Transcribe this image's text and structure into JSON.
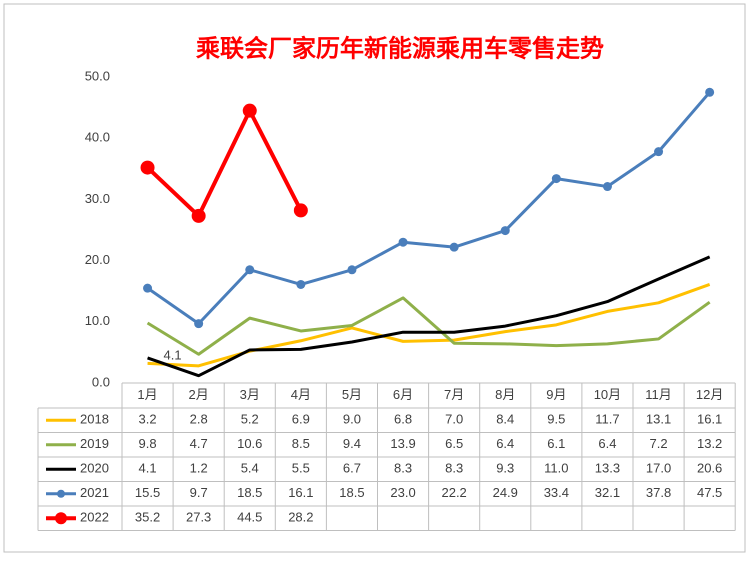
{
  "chart_data": {
    "type": "line",
    "title": "乘联会厂家历年新能源乘用车零售走势",
    "categories": [
      "1月",
      "2月",
      "3月",
      "4月",
      "5月",
      "6月",
      "7月",
      "8月",
      "9月",
      "10月",
      "11月",
      "12月"
    ],
    "ylim": [
      0,
      50
    ],
    "yticks": [
      {
        "value": 0,
        "label": "0.0"
      },
      {
        "value": 10,
        "label": "10.0"
      },
      {
        "value": 20,
        "label": "20.0"
      },
      {
        "value": 30,
        "label": "30.0"
      },
      {
        "value": 40,
        "label": "40.0"
      },
      {
        "value": 50,
        "label": "50.0"
      }
    ],
    "grid": false,
    "series": [
      {
        "name": "2018",
        "color": "#ffc000",
        "markers": false,
        "values": [
          3.2,
          2.8,
          5.2,
          6.9,
          9.0,
          6.8,
          7.0,
          8.4,
          9.5,
          11.7,
          13.1,
          16.1
        ],
        "value_labels": [
          "3.2",
          "2.8",
          "5.2",
          "6.9",
          "9.0",
          "6.8",
          "7.0",
          "8.4",
          "9.5",
          "11.7",
          "13.1",
          "16.1"
        ]
      },
      {
        "name": "2019",
        "color": "#8fb04a",
        "markers": false,
        "values": [
          9.8,
          4.7,
          10.6,
          8.5,
          9.4,
          13.9,
          6.5,
          6.4,
          6.1,
          6.4,
          7.2,
          13.2
        ],
        "value_labels": [
          "9.8",
          "4.7",
          "10.6",
          "8.5",
          "9.4",
          "13.9",
          "6.5",
          "6.4",
          "6.1",
          "6.4",
          "7.2",
          "13.2"
        ]
      },
      {
        "name": "2020",
        "color": "#000000",
        "markers": false,
        "values": [
          4.1,
          1.2,
          5.4,
          5.5,
          6.7,
          8.3,
          8.3,
          9.3,
          11.0,
          13.3,
          17.0,
          20.6
        ],
        "value_labels": [
          "4.1",
          "1.2",
          "5.4",
          "5.5",
          "6.7",
          "8.3",
          "8.3",
          "9.3",
          "11.0",
          "13.3",
          "17.0",
          "20.6"
        ]
      },
      {
        "name": "2021",
        "color": "#4a7ebb",
        "markers": true,
        "values": [
          15.5,
          9.7,
          18.5,
          16.1,
          18.5,
          23.0,
          22.2,
          24.9,
          33.4,
          32.1,
          37.8,
          47.5
        ],
        "value_labels": [
          "15.5",
          "9.7",
          "18.5",
          "16.1",
          "18.5",
          "23.0",
          "22.2",
          "24.9",
          "33.4",
          "32.1",
          "37.8",
          "47.5"
        ]
      },
      {
        "name": "2022",
        "color": "#ff0000",
        "markers": true,
        "values": [
          35.2,
          27.3,
          44.5,
          28.2,
          null,
          null,
          null,
          null,
          null,
          null,
          null,
          null
        ],
        "value_labels": [
          "35.2",
          "27.3",
          "44.5",
          "28.2",
          null,
          null,
          null,
          null,
          null,
          null,
          null,
          null
        ]
      }
    ]
  }
}
